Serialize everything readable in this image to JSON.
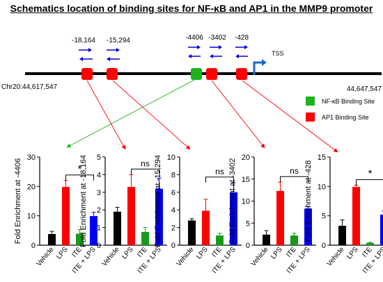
{
  "title": "Schematics location of binding sites for NF-κB and AP1 in the  MMP9 promoter",
  "schematic": {
    "chr_start": "Chr20:44,617,547",
    "chr_end": "44,647,547",
    "tss_label": "TSS",
    "positions": [
      "-18,164",
      "-15,294",
      "-4406",
      "-3402",
      "-428"
    ],
    "legend": [
      {
        "label": "NF-κB Binding Site",
        "color": "#1db31d"
      },
      {
        "label": "AP1 Binding Site",
        "color": "#ff0000"
      }
    ]
  },
  "colors": {
    "vehicle": "#000000",
    "lps": "#ff0000",
    "ite": "#1a9a1a",
    "ite_lps": "#0000ff",
    "primer_arrow": "#0000dd",
    "tss_arrow": "#1a66cc"
  },
  "chart_data": [
    {
      "type": "bar",
      "ylabel": "Fold Enrichment at -4406",
      "categories": [
        "Vehicle",
        "LPS",
        "ITE",
        "ITE + LPS"
      ],
      "values": [
        3.8,
        19.8,
        3.9,
        9.9
      ],
      "errors": [
        0.9,
        2.2,
        1.4,
        1.3
      ],
      "ylim": [
        0,
        30
      ],
      "yticks": [
        "0",
        "10",
        "20",
        "30"
      ],
      "significance": "*"
    },
    {
      "type": "bar",
      "ylabel": "Fold Enrichment at -18,164",
      "categories": [
        "Vehicle",
        "LPS",
        "ITE",
        "ITE + LPS"
      ],
      "values": [
        1.9,
        3.3,
        0.75,
        3.2
      ],
      "errors": [
        0.25,
        0.7,
        0.25,
        0.6
      ],
      "ylim": [
        0,
        5
      ],
      "yticks": [
        "0",
        "1",
        "2",
        "3",
        "4",
        "5"
      ],
      "significance": "ns"
    },
    {
      "type": "bar",
      "ylabel": "Fold Enrichment at -15,294",
      "categories": [
        "Vehicle",
        "LPS",
        "ITE",
        "ITE + LPS"
      ],
      "values": [
        2.8,
        3.9,
        1.1,
        6.0
      ],
      "errors": [
        0.2,
        1.3,
        0.25,
        1.1
      ],
      "ylim": [
        0,
        10
      ],
      "yticks": [
        "0",
        "2",
        "4",
        "6",
        "8",
        "10"
      ],
      "significance": "ns"
    },
    {
      "type": "bar",
      "ylabel": "Fold Enrichment at -3402",
      "categories": [
        "Vehicle",
        "LPS",
        "ITE",
        "ITE + LPS"
      ],
      "values": [
        2.4,
        12.3,
        2.2,
        8.3
      ],
      "errors": [
        0.9,
        2.0,
        0.5,
        0.5
      ],
      "ylim": [
        0,
        20
      ],
      "yticks": [
        "0",
        "5",
        "10",
        "15",
        "20"
      ],
      "significance": "ns"
    },
    {
      "type": "bar",
      "ylabel": "Fold Enrichment at -428",
      "categories": [
        "Vehicle",
        "LPS",
        "ITE",
        "ITE + LPS"
      ],
      "values": [
        3.3,
        9.9,
        0.4,
        5.2
      ],
      "errors": [
        1.0,
        0.3,
        0.1,
        0.6
      ],
      "ylim": [
        0,
        15
      ],
      "yticks": [
        "0",
        "5",
        "10",
        "15"
      ],
      "significance": "*"
    }
  ]
}
